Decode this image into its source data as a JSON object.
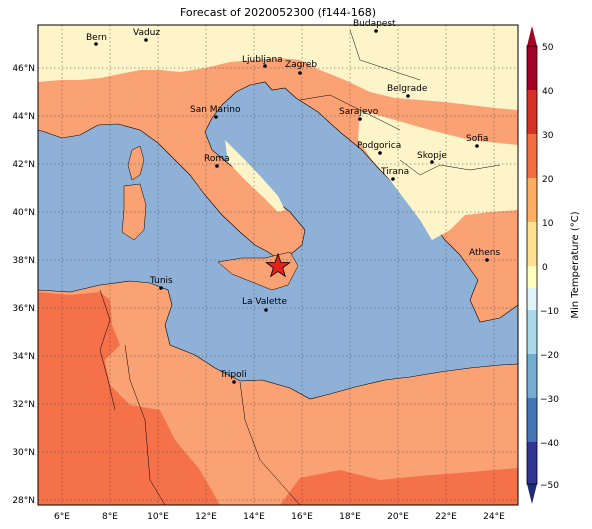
{
  "title": "Forecast of 2020052300 (f144-168)",
  "colorbar": {
    "label": "Min Temperature (°C)",
    "ticks": [
      "50",
      "40",
      "30",
      "20",
      "10",
      "0",
      "−10",
      "−20",
      "−30",
      "−40",
      "−50"
    ],
    "colors": [
      "#a50026",
      "#d73027",
      "#f46d43",
      "#fdae61",
      "#fee090",
      "#ffffbf",
      "#e0f3f8",
      "#abd9e9",
      "#74add1",
      "#4575b4",
      "#313695",
      "#1e2a7a"
    ]
  },
  "map": {
    "lon_labels": [
      "6°E",
      "8°E",
      "10°E",
      "12°E",
      "14°E",
      "16°E",
      "18°E",
      "20°E",
      "22°E",
      "24°E"
    ],
    "lat_labels": [
      "46°N",
      "44°N",
      "42°N",
      "40°N",
      "38°N",
      "36°N",
      "34°N",
      "32°N",
      "30°N",
      "28°N"
    ],
    "sea_color": "#8fb1d7",
    "land_warm_color": "#fba274",
    "land_hot_color": "#f4714a",
    "land_mild_color": "#fdf5c9"
  },
  "cities": [
    {
      "name": "Bern"
    },
    {
      "name": "Vaduz"
    },
    {
      "name": "Budapest"
    },
    {
      "name": "Ljubljana"
    },
    {
      "name": "Zagreb"
    },
    {
      "name": "Belgrade"
    },
    {
      "name": "Sarajevo"
    },
    {
      "name": "San Marino"
    },
    {
      "name": "Podgorica"
    },
    {
      "name": "Sofia"
    },
    {
      "name": "Roma"
    },
    {
      "name": "Skopje"
    },
    {
      "name": "Tirana"
    },
    {
      "name": "Athens"
    },
    {
      "name": "Tunis"
    },
    {
      "name": "La Valette"
    },
    {
      "name": "Tripoli"
    }
  ],
  "marker": {
    "symbol": "star",
    "color": "#e8201c"
  }
}
